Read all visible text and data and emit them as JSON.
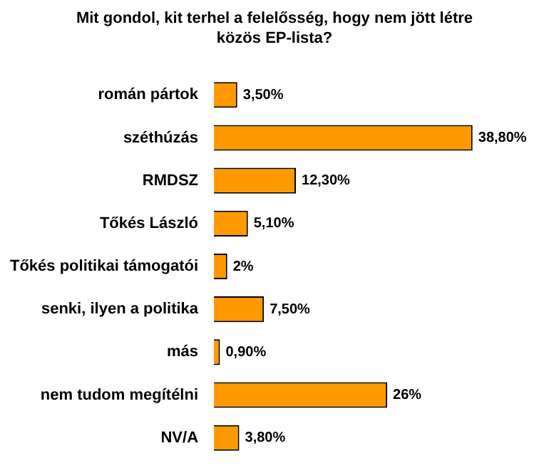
{
  "chart_data": {
    "type": "bar",
    "orientation": "horizontal",
    "title": "Mit gondol, kit terhel a felelősség, hogy nem jött létre közös EP-lista?",
    "categories": [
      "román pártok",
      "széthúzás",
      "RMDSZ",
      "Tőkés László",
      "Tőkés politikai támogatói",
      "senki, ilyen a politika",
      "más",
      "nem tudom megítélni",
      "NV/A"
    ],
    "values": [
      3.5,
      38.8,
      12.3,
      5.1,
      2,
      7.5,
      0.9,
      26,
      3.8
    ],
    "value_labels": [
      "3,50%",
      "38,80%",
      "12,30%",
      "5,10%",
      "2%",
      "7,50%",
      "0,90%",
      "26%",
      "3,80%"
    ],
    "color": "#ff9900",
    "tick_labels": "y"
  }
}
